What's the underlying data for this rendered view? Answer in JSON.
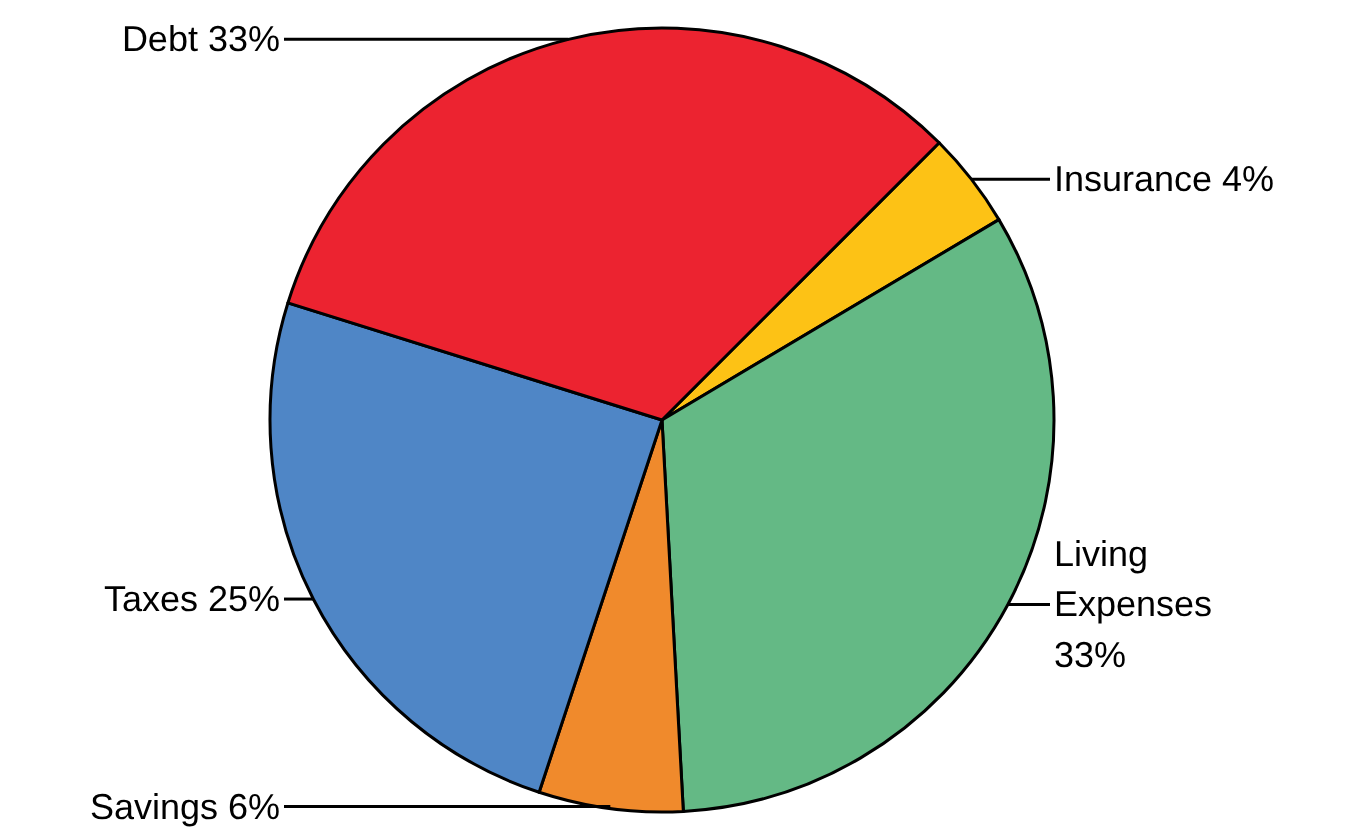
{
  "chart_data": {
    "type": "pie",
    "categories": [
      "Insurance",
      "Living Expenses",
      "Savings",
      "Taxes",
      "Debt"
    ],
    "values": [
      4,
      33,
      6,
      25,
      33
    ],
    "value_labels": [
      "4%",
      "33%",
      "6%",
      "25%",
      "33%"
    ],
    "colors": [
      "#fdc215",
      "#64b985",
      "#f08a2c",
      "#4f86c6",
      "#ec2330"
    ],
    "data_labels": true
  }
}
